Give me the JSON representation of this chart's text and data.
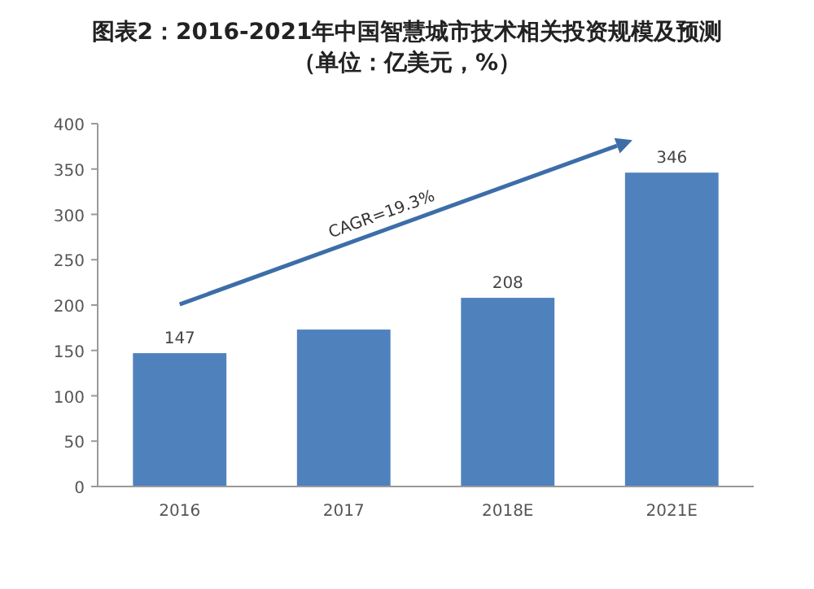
{
  "chart_data": {
    "type": "bar",
    "title": "图表2：2016-2021年中国智慧城市技术相关投资规模及预测（单位：亿美元，%）",
    "categories": [
      "2016",
      "2017",
      "2018E",
      "2021E"
    ],
    "values": [
      147,
      173,
      208,
      346
    ],
    "value_labels": [
      "147",
      null,
      "208",
      "346"
    ],
    "color": "#4f81bd",
    "ylim": [
      0,
      400
    ],
    "yticks": [
      0,
      50,
      100,
      150,
      200,
      250,
      300,
      350,
      400
    ],
    "annotations": [
      "CAGR=19.3%"
    ]
  }
}
